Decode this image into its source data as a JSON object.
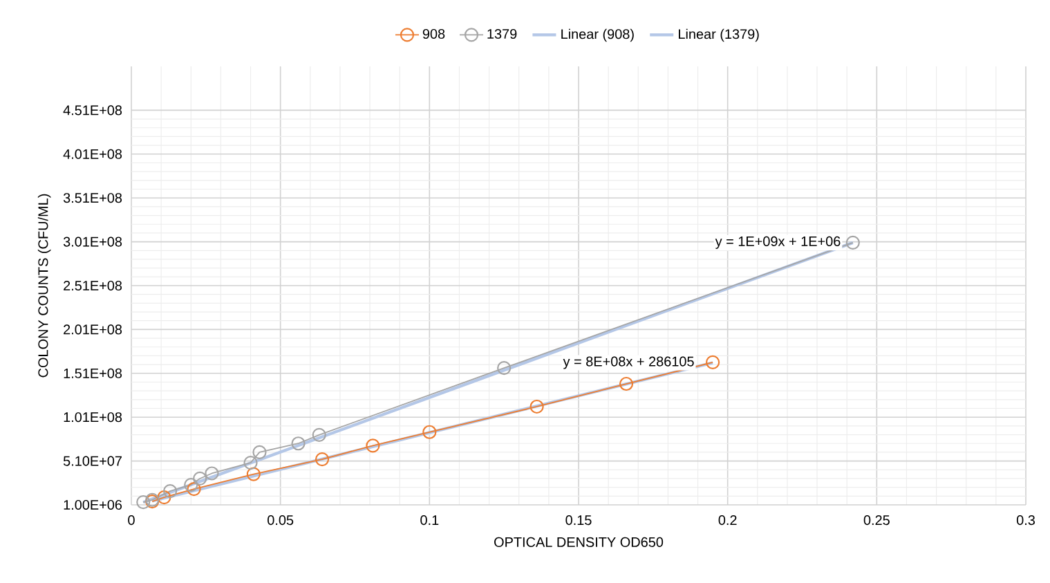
{
  "chart_data": {
    "type": "line",
    "xlabel": "OPTICAL DENSITY OD650",
    "ylabel": "COLONY COUNTS (CFU/ML)",
    "xlim": [
      0,
      0.3
    ],
    "ylim": [
      1000000,
      501000000
    ],
    "xticks": [
      0,
      0.05,
      0.1,
      0.15,
      0.2,
      0.25,
      0.3
    ],
    "yticks": [
      {
        "value": 1000000,
        "label": "1.00E+06"
      },
      {
        "value": 51000000,
        "label": "5.10E+07"
      },
      {
        "value": 101000000,
        "label": "1.01E+08"
      },
      {
        "value": 151000000,
        "label": "1.51E+08"
      },
      {
        "value": 201000000,
        "label": "2.01E+08"
      },
      {
        "value": 251000000,
        "label": "2.51E+08"
      },
      {
        "value": 301000000,
        "label": "3.01E+08"
      },
      {
        "value": 351000000,
        "label": "3.51E+08"
      },
      {
        "value": 401000000,
        "label": "4.01E+08"
      },
      {
        "value": 451000000,
        "label": "4.51E+08"
      }
    ],
    "grid": true,
    "legend": "top",
    "marker": "circle",
    "series": [
      {
        "name": "908",
        "color": "#ed7d31",
        "x": [
          0.007,
          0.011,
          0.021,
          0.041,
          0.064,
          0.081,
          0.1,
          0.136,
          0.166,
          0.195
        ],
        "values": [
          4900000,
          9600000,
          19000000,
          36000000,
          53000000,
          68500000,
          84000000,
          113000000,
          139000000,
          163500000
        ]
      },
      {
        "name": "1379",
        "color": "#a5a5a5",
        "x": [
          0.004,
          0.007,
          0.013,
          0.02,
          0.023,
          0.027,
          0.04,
          0.043,
          0.056,
          0.063,
          0.125,
          0.242
        ],
        "values": [
          4100000,
          6700000,
          16700000,
          23800000,
          31000000,
          36900000,
          49000000,
          61000000,
          71000000,
          80800000,
          157000000,
          300000000
        ]
      },
      {
        "name": "Linear (908)",
        "color": "#b4c7e7",
        "marker": "none",
        "x": [
          0.007,
          0.195
        ],
        "values": [
          5500000,
          163000000
        ]
      },
      {
        "name": "Linear (1379)",
        "color": "#b4c7e7",
        "marker": "none",
        "x": [
          0.004,
          0.242
        ],
        "values": [
          4000000,
          300000000
        ]
      }
    ],
    "annotations": [
      {
        "text": "y = 1E+09x + 1E+06",
        "x": 0.2385,
        "y": 300000000
      },
      {
        "text": "y = 8E+08x + 286105",
        "x": 0.1894,
        "y": 163000000
      }
    ]
  }
}
